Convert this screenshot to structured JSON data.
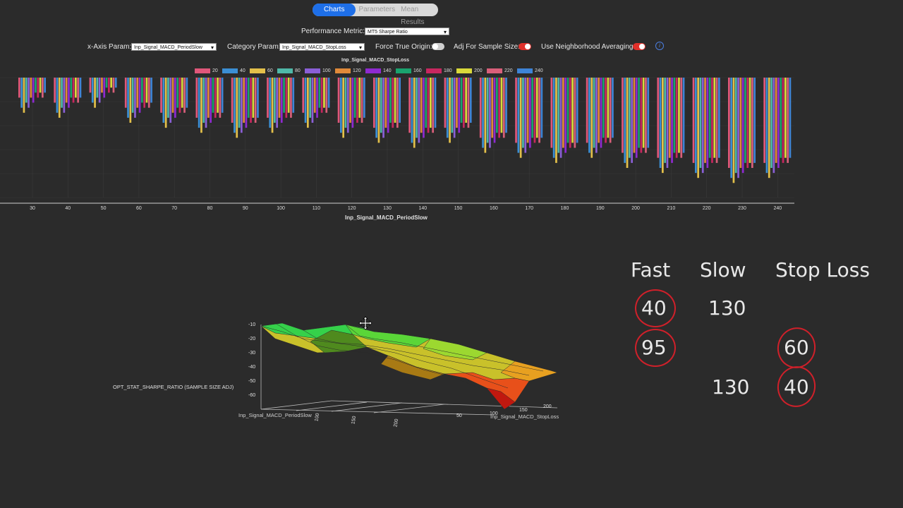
{
  "tabs": [
    {
      "label": "Charts",
      "active": true
    },
    {
      "label": "Parameters",
      "active": false
    },
    {
      "label": "Mean Results",
      "active": false
    }
  ],
  "controls": {
    "performance_metric_label": "Performance Metric:",
    "performance_metric_value": "MT5 Sharpe Ratio",
    "x_axis_label": "x-Axis Param:",
    "x_axis_value": "Inp_Signal_MACD_PeriodSlow",
    "category_label": "Category Param:",
    "category_value": "Inp_Signal_MACD_StopLoss",
    "force_origin_label": "Force True Origin:",
    "force_origin_on": false,
    "adj_sample_label": "Adj For Sample Size:",
    "adj_sample_on": true,
    "neighborhood_label": "Use Neighborhood Averaging:",
    "neighborhood_on": true,
    "info_glyph": "i"
  },
  "bar_chart": {
    "legend_title": "Inp_Signal_MACD_StopLoss",
    "xlabel": "Inp_Signal_MACD_PeriodSlow",
    "legend": [
      {
        "name": "20",
        "color": "#e0577a"
      },
      {
        "name": "40",
        "color": "#3b8fd4"
      },
      {
        "name": "60",
        "color": "#e3c04a"
      },
      {
        "name": "80",
        "color": "#4fb8a8"
      },
      {
        "name": "100",
        "color": "#8a5fd6"
      },
      {
        "name": "120",
        "color": "#e08a3a"
      },
      {
        "name": "140",
        "color": "#8e2ad0"
      },
      {
        "name": "160",
        "color": "#1aa36e"
      },
      {
        "name": "180",
        "color": "#c8275f"
      },
      {
        "name": "200",
        "color": "#d9d93a"
      },
      {
        "name": "220",
        "color": "#d95f7a"
      },
      {
        "name": "240",
        "color": "#3e84d6"
      }
    ],
    "x_ticks": [
      "30",
      "40",
      "50",
      "60",
      "70",
      "80",
      "90",
      "100",
      "110",
      "120",
      "130",
      "140",
      "150",
      "160",
      "170",
      "180",
      "190",
      "200",
      "210",
      "220",
      "230",
      "240"
    ]
  },
  "chart_data": {
    "type": "bar",
    "title": "Inp_Signal_MACD_StopLoss",
    "xlabel": "Inp_Signal_MACD_PeriodSlow",
    "ylabel": "",
    "categories": [
      "30",
      "40",
      "50",
      "60",
      "70",
      "80",
      "90",
      "100",
      "110",
      "120",
      "130",
      "140",
      "150",
      "160",
      "170",
      "180",
      "190",
      "200",
      "210",
      "220",
      "230",
      "240"
    ],
    "series": [
      {
        "name": "20",
        "values": [
          -4,
          -5,
          -3,
          -6,
          -7,
          -8,
          -9,
          -8,
          -7,
          -9,
          -10,
          -11,
          -10,
          -12,
          -13,
          -14,
          -13,
          -15,
          -16,
          -17,
          -18,
          -17
        ]
      },
      {
        "name": "40",
        "values": [
          -6,
          -7,
          -5,
          -8,
          -9,
          -10,
          -11,
          -10,
          -9,
          -11,
          -12,
          -13,
          -12,
          -14,
          -15,
          -16,
          -15,
          -17,
          -18,
          -19,
          -20,
          -19
        ]
      },
      {
        "name": "60",
        "values": [
          -7,
          -8,
          -6,
          -9,
          -10,
          -11,
          -12,
          -11,
          -10,
          -12,
          -13,
          -14,
          -13,
          -15,
          -16,
          -17,
          -16,
          -18,
          -19,
          -20,
          -21,
          -20
        ]
      },
      {
        "name": "80",
        "values": [
          -5,
          -6,
          -4,
          -7,
          -8,
          -9,
          -10,
          -9,
          -8,
          -10,
          -11,
          -12,
          -11,
          -13,
          -14,
          -15,
          -14,
          -16,
          -17,
          -18,
          -19,
          -18
        ]
      },
      {
        "name": "100",
        "values": [
          -6,
          -7,
          -5,
          -8,
          -9,
          -10,
          -11,
          -10,
          -9,
          -11,
          -12,
          -13,
          -12,
          -14,
          -15,
          -16,
          -15,
          -17,
          -18,
          -19,
          -20,
          -19
        ]
      },
      {
        "name": "120",
        "values": [
          -4,
          -5,
          -3,
          -6,
          -7,
          -8,
          -9,
          -8,
          -7,
          -9,
          -10,
          -11,
          -10,
          -12,
          -13,
          -14,
          -13,
          -15,
          -16,
          -17,
          -18,
          -17
        ]
      },
      {
        "name": "140",
        "values": [
          -5,
          -6,
          -4,
          -7,
          -8,
          -9,
          -10,
          -9,
          -8,
          -10,
          -11,
          -12,
          -11,
          -13,
          -14,
          -15,
          -14,
          -16,
          -17,
          -18,
          -19,
          -18
        ]
      },
      {
        "name": "160",
        "values": [
          -3,
          -4,
          -2,
          -5,
          -6,
          -7,
          -8,
          -7,
          -6,
          -8,
          -9,
          -10,
          -9,
          -11,
          -12,
          -13,
          -12,
          -14,
          -15,
          -16,
          -17,
          -16
        ]
      },
      {
        "name": "180",
        "values": [
          -4,
          -5,
          -3,
          -6,
          -7,
          -8,
          -9,
          -8,
          -7,
          -9,
          -10,
          -11,
          -10,
          -12,
          -13,
          -14,
          -13,
          -15,
          -16,
          -17,
          -18,
          -17
        ]
      },
      {
        "name": "200",
        "values": [
          -3,
          -4,
          -2,
          -5,
          -6,
          -7,
          -8,
          -7,
          -6,
          -8,
          -9,
          -10,
          -9,
          -11,
          -12,
          -13,
          -12,
          -14,
          -15,
          -16,
          -17,
          -16
        ]
      },
      {
        "name": "220",
        "values": [
          -4,
          -5,
          -3,
          -6,
          -7,
          -8,
          -9,
          -8,
          -7,
          -9,
          -10,
          -11,
          -10,
          -12,
          -13,
          -14,
          -13,
          -15,
          -16,
          -17,
          -18,
          -17
        ]
      },
      {
        "name": "240",
        "values": [
          -3,
          -4,
          -2,
          -5,
          -6,
          -7,
          -8,
          -7,
          -6,
          -8,
          -9,
          -10,
          -9,
          -11,
          -12,
          -13,
          -12,
          -14,
          -15,
          -16,
          -17,
          -16
        ]
      }
    ],
    "grid": true,
    "legend_position": "top-center"
  },
  "surface_chart": {
    "zlabel": "OPT_STAT_SHARPE_RATIO (SAMPLE SIZE ADJ)",
    "z_ticks": [
      "-10",
      "-20",
      "-30",
      "-40",
      "-50",
      "-60"
    ],
    "x_axis_label": "Inp_Signal_MACD_PeriodSlow",
    "x_ticks": [
      "100",
      "150",
      "200"
    ],
    "y_axis_label": "Inp_Signal_MACD_StopLoss",
    "y_ticks": [
      "50",
      "100",
      "150",
      "200"
    ]
  },
  "annotations": {
    "headers": [
      "Fast",
      "Slow",
      "Stop Loss"
    ],
    "row1": {
      "fast": "40",
      "slow": "130"
    },
    "row2": {
      "fast": "95",
      "stop": "60"
    },
    "row3": {
      "slow": "130",
      "stop": "40"
    }
  }
}
